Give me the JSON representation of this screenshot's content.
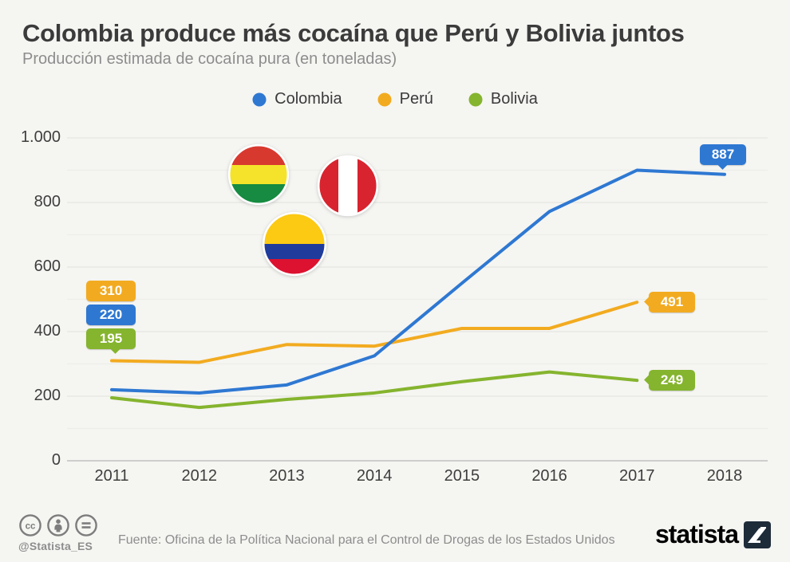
{
  "chart_data": {
    "type": "line",
    "title": "Colombia produce más cocaína que Perú y Bolivia juntos",
    "subtitle": "Producción estimada de cocaína pura (en toneladas)",
    "x": [
      2011,
      2012,
      2013,
      2014,
      2015,
      2016,
      2017,
      2018
    ],
    "series": [
      {
        "name": "Colombia",
        "color": "#2e78d2",
        "values": [
          220,
          210,
          235,
          325,
          550,
          772,
          900,
          887
        ]
      },
      {
        "name": "Perú",
        "color": "#f2ab20",
        "values": [
          310,
          305,
          360,
          355,
          410,
          410,
          491
        ]
      },
      {
        "name": "Bolivia",
        "color": "#85b42e",
        "values": [
          195,
          165,
          190,
          210,
          245,
          275,
          249
        ]
      }
    ],
    "ylim": [
      0,
      1000
    ],
    "yticks": [
      {
        "value": 0,
        "label": "0"
      },
      {
        "value": 200,
        "label": "200"
      },
      {
        "value": 400,
        "label": "400"
      },
      {
        "value": 600,
        "label": "600"
      },
      {
        "value": 800,
        "label": "800"
      },
      {
        "value": 1000,
        "label": "1.000"
      }
    ],
    "grid": "horizontal lines every 100, labels every 200",
    "legend_position": "top-center",
    "annotations": [
      {
        "text": "310",
        "series": "Perú",
        "position": "start-2011"
      },
      {
        "text": "220",
        "series": "Colombia",
        "position": "start-2011"
      },
      {
        "text": "195",
        "series": "Bolivia",
        "position": "start-2011"
      },
      {
        "text": "887",
        "series": "Colombia",
        "position": "end-2018"
      },
      {
        "text": "491",
        "series": "Perú",
        "position": "end-2017"
      },
      {
        "text": "249",
        "series": "Bolivia",
        "position": "end-2017"
      }
    ]
  },
  "colors": {
    "background": "#f5f5f2",
    "grid_major": "#e5e5e2",
    "grid_minor": "#ededea",
    "baseline": "#c9c9c9",
    "text_dark": "#3b3b3b",
    "text_muted": "#8d8d8d"
  },
  "flags": {
    "bolivia": {
      "red": "#d8392f",
      "yellow": "#f4e32a",
      "green": "#168b41"
    },
    "peru": {
      "red": "#d8242f",
      "white": "#ffffff"
    },
    "colombia": {
      "yellow": "#fcc913",
      "blue": "#1f3c9c",
      "red": "#dc1230"
    }
  },
  "footer": {
    "cc_glyph": "cc",
    "nd_glyph": "=",
    "handle": "@Statista_ES",
    "source": "Fuente: Oficina de la Política Nacional para el Control de Drogas de los Estados Unidos",
    "brand": "statista",
    "brand_color": "#1e2b39",
    "icon_color": "#7d7d7d"
  }
}
